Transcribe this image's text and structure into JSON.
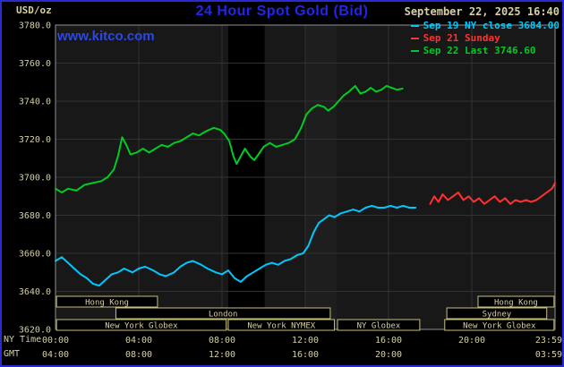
{
  "header": {
    "units": "USD/oz",
    "title": "24 Hour Spot Gold (Bid)",
    "datetime": "September 22, 2025 16:40",
    "website": "www.kitco.com"
  },
  "legend": [
    {
      "id": "sep19-ny-close",
      "label": "Sep 19 NY close 3684.00",
      "color": "#00c8ff"
    },
    {
      "id": "sep21-sunday",
      "label": "Sep 21 Sunday",
      "color": "#ff3232"
    },
    {
      "id": "sep22-last",
      "label": "Sep 22 Last 3746.60",
      "color": "#00cc22"
    }
  ],
  "axis": {
    "ny_label": "NY Time",
    "gmt_label": "GMT",
    "y_ticks": [
      "3780.0",
      "3760.0",
      "3740.0",
      "3720.0",
      "3700.0",
      "3680.0",
      "3660.0",
      "3640.0",
      "3620.0"
    ],
    "x_ticks_ny": [
      "00:00",
      "04:00",
      "08:00",
      "12:00",
      "16:00",
      "20:00",
      "23:59"
    ],
    "x_ticks_ny_hours": [
      0,
      4,
      8,
      12,
      16,
      20,
      23.983
    ],
    "x_ticks_gmt": [
      "04:00",
      "08:00",
      "12:00",
      "16:00",
      "20:00",
      "03:59"
    ],
    "x_ticks_gmt_hours": [
      0,
      4,
      8,
      12,
      16,
      23.983
    ]
  },
  "sessions": [
    {
      "row": 0,
      "label": "Hong Kong",
      "start": 0.05,
      "end": 4.9
    },
    {
      "row": 0,
      "label": "Hong Kong",
      "start": 20.3,
      "end": 23.95
    },
    {
      "row": 1,
      "label": "London",
      "start": 2.9,
      "end": 13.2
    },
    {
      "row": 1,
      "label": "Sydney",
      "start": 18.8,
      "end": 23.6
    },
    {
      "row": 2,
      "label": "New York Globex",
      "start": 0.05,
      "end": 8.2
    },
    {
      "row": 2,
      "label": "New York NYMEX",
      "start": 8.3,
      "end": 13.4
    },
    {
      "row": 2,
      "label": "NY Globex",
      "start": 13.55,
      "end": 17.5
    },
    {
      "row": 2,
      "label": "New York Globex",
      "start": 18.7,
      "end": 23.95
    }
  ],
  "plot_bands": [
    {
      "start": 8.3,
      "end": 10.05,
      "color": "#000000"
    },
    {
      "start": 12.0,
      "end": 13.5,
      "color": "#1e1e1e"
    }
  ],
  "colors": {
    "background": "#000000",
    "border": "#2a2ad2",
    "title": "#2424ee",
    "link": "#2d46e8",
    "text": "#d6cfa2",
    "grid": "#323232",
    "frame": "#909090",
    "plot_bg": "#181818",
    "session_border": "#c9bf7e"
  },
  "chart_data": {
    "type": "line",
    "title": "24 Hour Spot Gold (Bid)",
    "xlabel": "NY Time",
    "ylabel": "USD/oz",
    "ylim": [
      3620,
      3780
    ],
    "xlim_hours": [
      0,
      24
    ],
    "grid": true,
    "legend_position": "top-right",
    "series": [
      {
        "id": "sep19-ny-close",
        "name": "Sep 19 NY close 3684.00",
        "color": "#00c8ff",
        "points": [
          [
            0,
            3656
          ],
          [
            0.3,
            3658
          ],
          [
            0.6,
            3655
          ],
          [
            0.9,
            3652
          ],
          [
            1.2,
            3649
          ],
          [
            1.5,
            3647
          ],
          [
            1.8,
            3644
          ],
          [
            2.1,
            3643
          ],
          [
            2.4,
            3646
          ],
          [
            2.7,
            3649
          ],
          [
            3,
            3650
          ],
          [
            3.3,
            3652
          ],
          [
            3.7,
            3650
          ],
          [
            4,
            3652
          ],
          [
            4.3,
            3653
          ],
          [
            4.7,
            3651
          ],
          [
            5,
            3649
          ],
          [
            5.3,
            3648
          ],
          [
            5.7,
            3650
          ],
          [
            6,
            3653
          ],
          [
            6.3,
            3655
          ],
          [
            6.6,
            3656
          ],
          [
            7,
            3654
          ],
          [
            7.3,
            3652
          ],
          [
            7.7,
            3650
          ],
          [
            8,
            3649
          ],
          [
            8.3,
            3651
          ],
          [
            8.6,
            3647
          ],
          [
            8.9,
            3645
          ],
          [
            9.2,
            3648
          ],
          [
            9.5,
            3650
          ],
          [
            9.8,
            3652
          ],
          [
            10.1,
            3654
          ],
          [
            10.4,
            3655
          ],
          [
            10.7,
            3654
          ],
          [
            11,
            3656
          ],
          [
            11.3,
            3657
          ],
          [
            11.6,
            3659
          ],
          [
            11.9,
            3660
          ],
          [
            12.15,
            3664
          ],
          [
            12.4,
            3671
          ],
          [
            12.65,
            3676
          ],
          [
            12.9,
            3678
          ],
          [
            13.15,
            3680
          ],
          [
            13.4,
            3679
          ],
          [
            13.7,
            3681
          ],
          [
            14,
            3682
          ],
          [
            14.3,
            3683
          ],
          [
            14.6,
            3682
          ],
          [
            14.9,
            3684
          ],
          [
            15.2,
            3685
          ],
          [
            15.5,
            3684
          ],
          [
            15.8,
            3684
          ],
          [
            16.1,
            3685
          ],
          [
            16.4,
            3684
          ],
          [
            16.7,
            3685
          ],
          [
            17,
            3684
          ],
          [
            17.3,
            3684
          ]
        ]
      },
      {
        "id": "sep21-sunday",
        "name": "Sep 21 Sunday",
        "color": "#ff3232",
        "points": [
          [
            18,
            3686
          ],
          [
            18.2,
            3690
          ],
          [
            18.4,
            3687
          ],
          [
            18.6,
            3691
          ],
          [
            18.85,
            3688
          ],
          [
            19.1,
            3690
          ],
          [
            19.35,
            3692
          ],
          [
            19.6,
            3688
          ],
          [
            19.85,
            3690
          ],
          [
            20.1,
            3687
          ],
          [
            20.35,
            3689
          ],
          [
            20.6,
            3686
          ],
          [
            20.85,
            3688
          ],
          [
            21.1,
            3690
          ],
          [
            21.35,
            3687
          ],
          [
            21.6,
            3689
          ],
          [
            21.85,
            3686
          ],
          [
            22.1,
            3688
          ],
          [
            22.35,
            3687
          ],
          [
            22.6,
            3688
          ],
          [
            22.85,
            3687
          ],
          [
            23.1,
            3688
          ],
          [
            23.35,
            3690
          ],
          [
            23.6,
            3692
          ],
          [
            23.85,
            3694
          ],
          [
            24,
            3697
          ]
        ]
      },
      {
        "id": "sep22-last",
        "name": "Sep 22 Last 3746.60",
        "color": "#00cc22",
        "points": [
          [
            0,
            3694
          ],
          [
            0.3,
            3692
          ],
          [
            0.6,
            3694
          ],
          [
            1,
            3693
          ],
          [
            1.4,
            3696
          ],
          [
            1.8,
            3697
          ],
          [
            2.2,
            3698
          ],
          [
            2.5,
            3700
          ],
          [
            2.8,
            3704
          ],
          [
            3,
            3711
          ],
          [
            3.2,
            3721
          ],
          [
            3.4,
            3717
          ],
          [
            3.6,
            3712
          ],
          [
            3.9,
            3713
          ],
          [
            4.2,
            3715
          ],
          [
            4.5,
            3713
          ],
          [
            4.8,
            3715
          ],
          [
            5.1,
            3717
          ],
          [
            5.4,
            3716
          ],
          [
            5.7,
            3718
          ],
          [
            6,
            3719
          ],
          [
            6.3,
            3721
          ],
          [
            6.6,
            3723
          ],
          [
            6.9,
            3722
          ],
          [
            7.2,
            3724
          ],
          [
            7.6,
            3726
          ],
          [
            7.9,
            3725
          ],
          [
            8.1,
            3723
          ],
          [
            8.35,
            3719
          ],
          [
            8.55,
            3711
          ],
          [
            8.7,
            3707
          ],
          [
            8.9,
            3711
          ],
          [
            9.1,
            3715
          ],
          [
            9.35,
            3711
          ],
          [
            9.55,
            3709
          ],
          [
            9.75,
            3712
          ],
          [
            10,
            3716
          ],
          [
            10.3,
            3718
          ],
          [
            10.6,
            3716
          ],
          [
            10.9,
            3717
          ],
          [
            11.2,
            3718
          ],
          [
            11.5,
            3720
          ],
          [
            11.8,
            3726
          ],
          [
            12.05,
            3733
          ],
          [
            12.3,
            3736
          ],
          [
            12.6,
            3738
          ],
          [
            12.9,
            3737
          ],
          [
            13.1,
            3735
          ],
          [
            13.35,
            3737
          ],
          [
            13.6,
            3740
          ],
          [
            13.85,
            3743
          ],
          [
            14.1,
            3745
          ],
          [
            14.4,
            3748
          ],
          [
            14.65,
            3744
          ],
          [
            14.9,
            3745
          ],
          [
            15.15,
            3747
          ],
          [
            15.4,
            3745
          ],
          [
            15.65,
            3746
          ],
          [
            15.9,
            3748
          ],
          [
            16.15,
            3747
          ],
          [
            16.4,
            3746
          ],
          [
            16.67,
            3746.6
          ]
        ]
      }
    ]
  }
}
